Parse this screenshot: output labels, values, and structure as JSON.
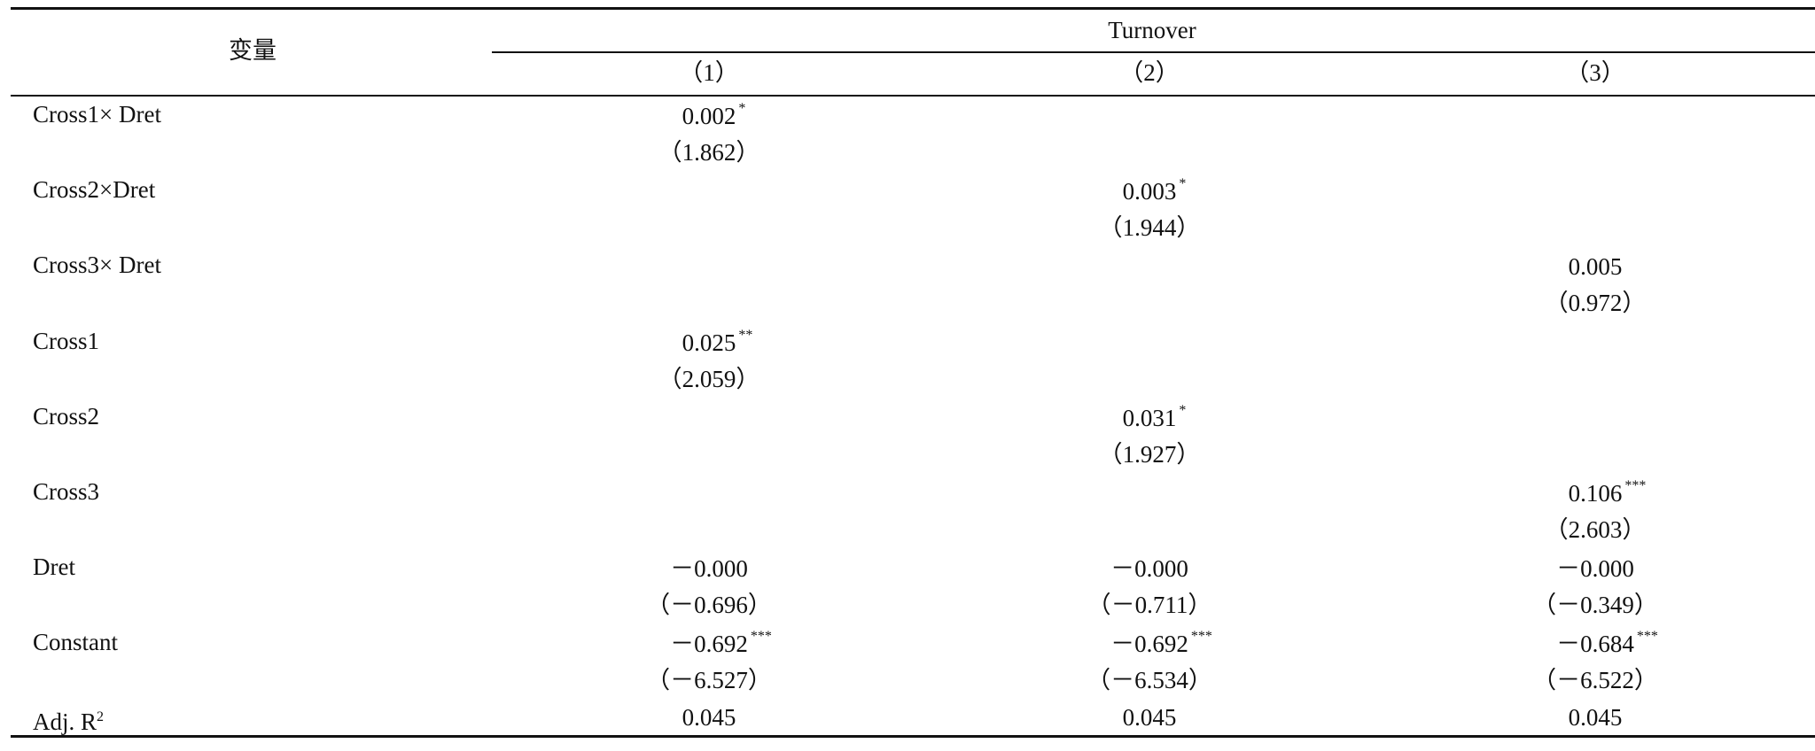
{
  "header": {
    "variable": "变量",
    "group": "Turnover",
    "columns": [
      "（1）",
      "（2）",
      "（3）"
    ]
  },
  "table": {
    "rows": [
      {
        "label": "Cross1× Dret",
        "cells": [
          {
            "coef": "0.002",
            "stars": "*",
            "t": "（1.862）"
          },
          null,
          null
        ]
      },
      {
        "label": "Cross2×Dret",
        "cells": [
          null,
          {
            "coef": "0.003",
            "stars": "*",
            "t": "（1.944）"
          },
          null
        ]
      },
      {
        "label": "Cross3× Dret",
        "cells": [
          null,
          null,
          {
            "coef": "0.005",
            "t": "（0.972）"
          }
        ]
      },
      {
        "label": "Cross1",
        "cells": [
          {
            "coef": "0.025",
            "stars": "**",
            "t": "（2.059）"
          },
          null,
          null
        ]
      },
      {
        "label": "Cross2",
        "cells": [
          null,
          {
            "coef": "0.031",
            "stars": "*",
            "t": "（1.927）"
          },
          null
        ]
      },
      {
        "label": "Cross3",
        "cells": [
          null,
          null,
          {
            "coef": "0.106",
            "stars": "***",
            "t": "（2.603）"
          }
        ]
      },
      {
        "label": "Dret",
        "cells": [
          {
            "coef": "－0.000",
            "t": "（－0.696）"
          },
          {
            "coef": "－0.000",
            "t": "（－0.711）"
          },
          {
            "coef": "－0.000",
            "t": "（－0.349）"
          }
        ]
      },
      {
        "label": "Constant",
        "cells": [
          {
            "coef": "－0.692",
            "stars": "***",
            "t": "（－6.527）"
          },
          {
            "coef": "－0.692",
            "stars": "***",
            "t": "（－6.534）"
          },
          {
            "coef": "－0.684",
            "stars": "***",
            "t": "（－6.522）"
          }
        ]
      }
    ],
    "footer": {
      "label": "Adj. R",
      "label_sup": "2",
      "values": [
        "0.045",
        "0.045",
        "0.045"
      ]
    }
  }
}
